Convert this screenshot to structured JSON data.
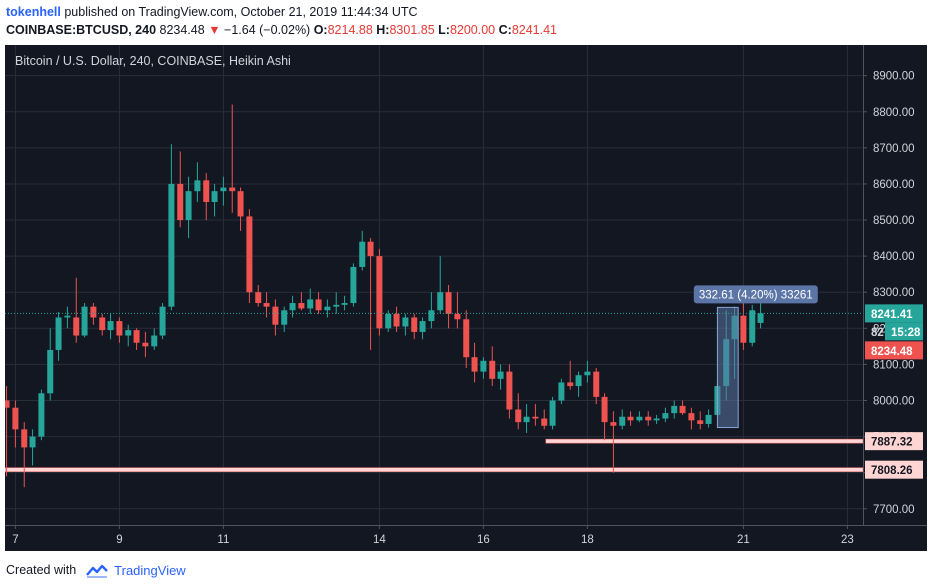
{
  "header": {
    "publisher": "tokenhell",
    "published_text": "published on TradingView.com, October 21, 2019 11:44:34 UTC",
    "symbol": "COINBASE:BTCUSD, 240",
    "last": "8234.48",
    "change": "−1.64 (−0.02%)",
    "o_label": "O:",
    "o_value": "8214.88",
    "h_label": "H:",
    "h_value": "8301.85",
    "l_label": "L:",
    "l_value": "8200.00",
    "c_label": "C:",
    "c_value": "8241.41"
  },
  "footer": {
    "created_with": "Created with",
    "brand": "TradingView"
  },
  "colors": {
    "background": "#131722",
    "up": "#26a69a",
    "down": "#ef5350",
    "grid": "#2a2e39",
    "axis_text": "#d1d4dc",
    "support": "#ffd5d3",
    "measure": "#5b76a6",
    "last_price": "#26a69a"
  },
  "chart_data": {
    "type": "candlestick",
    "title": "Bitcoin / U.S. Dollar, 240, COINBASE, Heikin Ashi",
    "ylim": [
      7655,
      8985
    ],
    "y_ticks": [
      7700,
      7800,
      7900,
      8000,
      8100,
      8200,
      8300,
      8400,
      8500,
      8600,
      8700,
      8800,
      8900
    ],
    "y_tick_labels": [
      "7700.00",
      "7800.00",
      "7900.00",
      "8000.00",
      "8100.00",
      "8200.00",
      "8300.00",
      "8400.00",
      "8500.00",
      "8600.00",
      "8700.00",
      "8800.00",
      "8900.00"
    ],
    "x_ticks": [
      7,
      9,
      11,
      14,
      16,
      18,
      21,
      23
    ],
    "x_tick_labels": [
      "7",
      "9",
      "11",
      "14",
      "16",
      "18",
      "21",
      "23"
    ],
    "x_range_days": [
      6.8,
      23.3
    ],
    "candles": [
      {
        "t": 6.83,
        "o": 8000,
        "h": 8040,
        "l": 7790,
        "c": 7980
      },
      {
        "t": 7.0,
        "o": 7980,
        "h": 8000,
        "l": 7870,
        "c": 7920
      },
      {
        "t": 7.17,
        "o": 7920,
        "h": 7940,
        "l": 7760,
        "c": 7870
      },
      {
        "t": 7.33,
        "o": 7870,
        "h": 7920,
        "l": 7820,
        "c": 7900
      },
      {
        "t": 7.5,
        "o": 7900,
        "h": 8030,
        "l": 7890,
        "c": 8020
      },
      {
        "t": 7.67,
        "o": 8020,
        "h": 8200,
        "l": 8000,
        "c": 8140
      },
      {
        "t": 7.83,
        "o": 8140,
        "h": 8245,
        "l": 8110,
        "c": 8230
      },
      {
        "t": 8.0,
        "o": 8230,
        "h": 8260,
        "l": 8200,
        "c": 8235
      },
      {
        "t": 8.17,
        "o": 8230,
        "h": 8340,
        "l": 8160,
        "c": 8180
      },
      {
        "t": 8.33,
        "o": 8180,
        "h": 8270,
        "l": 8175,
        "c": 8260
      },
      {
        "t": 8.5,
        "o": 8260,
        "h": 8270,
        "l": 8210,
        "c": 8230
      },
      {
        "t": 8.67,
        "o": 8230,
        "h": 8240,
        "l": 8180,
        "c": 8195
      },
      {
        "t": 8.83,
        "o": 8195,
        "h": 8240,
        "l": 8170,
        "c": 8220
      },
      {
        "t": 9.0,
        "o": 8220,
        "h": 8230,
        "l": 8160,
        "c": 8180
      },
      {
        "t": 9.17,
        "o": 8180,
        "h": 8210,
        "l": 8150,
        "c": 8195
      },
      {
        "t": 9.33,
        "o": 8195,
        "h": 8200,
        "l": 8140,
        "c": 8160
      },
      {
        "t": 9.5,
        "o": 8160,
        "h": 8190,
        "l": 8120,
        "c": 8150
      },
      {
        "t": 9.67,
        "o": 8150,
        "h": 8200,
        "l": 8140,
        "c": 8180
      },
      {
        "t": 9.83,
        "o": 8180,
        "h": 8270,
        "l": 8170,
        "c": 8260
      },
      {
        "t": 10.0,
        "o": 8260,
        "h": 8710,
        "l": 8250,
        "c": 8600
      },
      {
        "t": 10.17,
        "o": 8600,
        "h": 8690,
        "l": 8480,
        "c": 8500
      },
      {
        "t": 10.33,
        "o": 8500,
        "h": 8620,
        "l": 8450,
        "c": 8580
      },
      {
        "t": 10.5,
        "o": 8580,
        "h": 8660,
        "l": 8550,
        "c": 8610
      },
      {
        "t": 10.67,
        "o": 8610,
        "h": 8630,
        "l": 8500,
        "c": 8550
      },
      {
        "t": 10.83,
        "o": 8550,
        "h": 8600,
        "l": 8510,
        "c": 8580
      },
      {
        "t": 11.0,
        "o": 8580,
        "h": 8620,
        "l": 8540,
        "c": 8590
      },
      {
        "t": 11.17,
        "o": 8590,
        "h": 8820,
        "l": 8520,
        "c": 8580
      },
      {
        "t": 11.33,
        "o": 8580,
        "h": 8590,
        "l": 8470,
        "c": 8510
      },
      {
        "t": 11.5,
        "o": 8510,
        "h": 8530,
        "l": 8270,
        "c": 8300
      },
      {
        "t": 11.67,
        "o": 8300,
        "h": 8320,
        "l": 8260,
        "c": 8270
      },
      {
        "t": 11.83,
        "o": 8270,
        "h": 8300,
        "l": 8230,
        "c": 8260
      },
      {
        "t": 12.0,
        "o": 8260,
        "h": 8280,
        "l": 8180,
        "c": 8210
      },
      {
        "t": 12.17,
        "o": 8210,
        "h": 8260,
        "l": 8190,
        "c": 8250
      },
      {
        "t": 12.33,
        "o": 8250,
        "h": 8290,
        "l": 8230,
        "c": 8270
      },
      {
        "t": 12.5,
        "o": 8270,
        "h": 8300,
        "l": 8250,
        "c": 8255
      },
      {
        "t": 12.67,
        "o": 8255,
        "h": 8310,
        "l": 8240,
        "c": 8280
      },
      {
        "t": 12.83,
        "o": 8280,
        "h": 8300,
        "l": 8240,
        "c": 8250
      },
      {
        "t": 13.0,
        "o": 8250,
        "h": 8280,
        "l": 8230,
        "c": 8260
      },
      {
        "t": 13.17,
        "o": 8260,
        "h": 8300,
        "l": 8240,
        "c": 8265
      },
      {
        "t": 13.33,
        "o": 8265,
        "h": 8290,
        "l": 8250,
        "c": 8270
      },
      {
        "t": 13.5,
        "o": 8270,
        "h": 8380,
        "l": 8260,
        "c": 8370
      },
      {
        "t": 13.67,
        "o": 8370,
        "h": 8470,
        "l": 8360,
        "c": 8440
      },
      {
        "t": 13.83,
        "o": 8440,
        "h": 8450,
        "l": 8140,
        "c": 8400
      },
      {
        "t": 14.0,
        "o": 8400,
        "h": 8420,
        "l": 8180,
        "c": 8200
      },
      {
        "t": 14.17,
        "o": 8200,
        "h": 8250,
        "l": 8190,
        "c": 8240
      },
      {
        "t": 14.33,
        "o": 8240,
        "h": 8260,
        "l": 8190,
        "c": 8205
      },
      {
        "t": 14.5,
        "o": 8205,
        "h": 8240,
        "l": 8180,
        "c": 8230
      },
      {
        "t": 14.67,
        "o": 8230,
        "h": 8240,
        "l": 8170,
        "c": 8190
      },
      {
        "t": 14.83,
        "o": 8190,
        "h": 8230,
        "l": 8170,
        "c": 8220
      },
      {
        "t": 15.0,
        "o": 8220,
        "h": 8300,
        "l": 8200,
        "c": 8250
      },
      {
        "t": 15.17,
        "o": 8250,
        "h": 8400,
        "l": 8240,
        "c": 8300
      },
      {
        "t": 15.33,
        "o": 8300,
        "h": 8320,
        "l": 8200,
        "c": 8240
      },
      {
        "t": 15.5,
        "o": 8240,
        "h": 8300,
        "l": 8200,
        "c": 8225
      },
      {
        "t": 15.67,
        "o": 8225,
        "h": 8250,
        "l": 8090,
        "c": 8120
      },
      {
        "t": 15.83,
        "o": 8120,
        "h": 8160,
        "l": 8050,
        "c": 8080
      },
      {
        "t": 16.0,
        "o": 8080,
        "h": 8120,
        "l": 8060,
        "c": 8110
      },
      {
        "t": 16.17,
        "o": 8110,
        "h": 8150,
        "l": 8040,
        "c": 8060
      },
      {
        "t": 16.33,
        "o": 8060,
        "h": 8100,
        "l": 8030,
        "c": 8080
      },
      {
        "t": 16.5,
        "o": 8080,
        "h": 8100,
        "l": 7950,
        "c": 7975
      },
      {
        "t": 16.67,
        "o": 7975,
        "h": 8020,
        "l": 7920,
        "c": 7940
      },
      {
        "t": 16.83,
        "o": 7940,
        "h": 7990,
        "l": 7910,
        "c": 7955
      },
      {
        "t": 17.0,
        "o": 7955,
        "h": 7990,
        "l": 7930,
        "c": 7950
      },
      {
        "t": 17.17,
        "o": 7950,
        "h": 7975,
        "l": 7920,
        "c": 7930
      },
      {
        "t": 17.33,
        "o": 7930,
        "h": 8010,
        "l": 7920,
        "c": 8000
      },
      {
        "t": 17.5,
        "o": 8000,
        "h": 8060,
        "l": 7990,
        "c": 8050
      },
      {
        "t": 17.67,
        "o": 8050,
        "h": 8110,
        "l": 8030,
        "c": 8040
      },
      {
        "t": 17.83,
        "o": 8040,
        "h": 8080,
        "l": 8010,
        "c": 8070
      },
      {
        "t": 18.0,
        "o": 8070,
        "h": 8110,
        "l": 8050,
        "c": 8080
      },
      {
        "t": 18.17,
        "o": 8080,
        "h": 8090,
        "l": 7990,
        "c": 8010
      },
      {
        "t": 18.33,
        "o": 8010,
        "h": 8020,
        "l": 7890,
        "c": 7940
      },
      {
        "t": 18.5,
        "o": 7940,
        "h": 7970,
        "l": 7800,
        "c": 7930
      },
      {
        "t": 18.67,
        "o": 7930,
        "h": 7975,
        "l": 7920,
        "c": 7955
      },
      {
        "t": 18.83,
        "o": 7955,
        "h": 7970,
        "l": 7930,
        "c": 7945
      },
      {
        "t": 19.0,
        "o": 7945,
        "h": 7970,
        "l": 7940,
        "c": 7955
      },
      {
        "t": 19.17,
        "o": 7955,
        "h": 7970,
        "l": 7930,
        "c": 7945
      },
      {
        "t": 19.33,
        "o": 7945,
        "h": 7960,
        "l": 7935,
        "c": 7950
      },
      {
        "t": 19.5,
        "o": 7950,
        "h": 7980,
        "l": 7940,
        "c": 7965
      },
      {
        "t": 19.67,
        "o": 7965,
        "h": 8000,
        "l": 7950,
        "c": 7985
      },
      {
        "t": 19.83,
        "o": 7985,
        "h": 8000,
        "l": 7960,
        "c": 7965
      },
      {
        "t": 20.0,
        "o": 7965,
        "h": 7980,
        "l": 7920,
        "c": 7945
      },
      {
        "t": 20.17,
        "o": 7945,
        "h": 7970,
        "l": 7920,
        "c": 7935
      },
      {
        "t": 20.33,
        "o": 7935,
        "h": 7975,
        "l": 7925,
        "c": 7960
      },
      {
        "t": 20.5,
        "o": 7960,
        "h": 8050,
        "l": 7955,
        "c": 8040
      },
      {
        "t": 20.67,
        "o": 8040,
        "h": 8250,
        "l": 8000,
        "c": 8170
      },
      {
        "t": 20.83,
        "o": 8170,
        "h": 8260,
        "l": 8060,
        "c": 8235
      },
      {
        "t": 21.0,
        "o": 8235,
        "h": 8300,
        "l": 8140,
        "c": 8160
      },
      {
        "t": 21.17,
        "o": 8160,
        "h": 8265,
        "l": 8150,
        "c": 8250
      },
      {
        "t": 21.33,
        "o": 8214.88,
        "h": 8301.85,
        "l": 8200,
        "c": 8241.41
      }
    ],
    "support_levels": [
      {
        "value": 7887.32,
        "label": "7887.32",
        "from_day": 17.2
      },
      {
        "value": 7808.26,
        "label": "7808.26",
        "from_day": 6.8
      }
    ],
    "measure": {
      "from_day": 20.5,
      "to_day": 20.9,
      "low": 7925,
      "high": 8258,
      "label": "332.61 (4.20%) 33261"
    },
    "last_price": {
      "value": 8241.41,
      "label": "8241.41",
      "countdown": "15:28"
    },
    "prev_price": {
      "value": 8234.48,
      "label": "8234.48"
    },
    "price_tag_partial": "82"
  }
}
